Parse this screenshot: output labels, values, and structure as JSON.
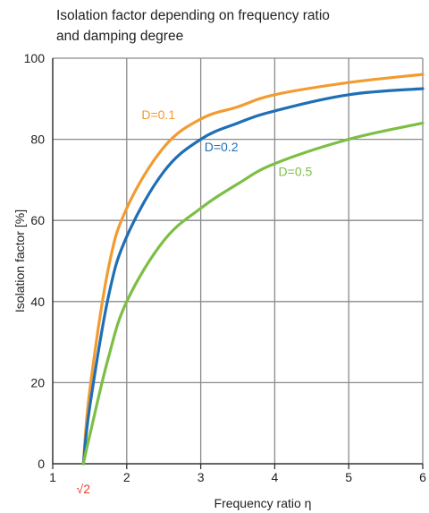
{
  "chart_data": {
    "type": "line",
    "title_lines": [
      "Isolation factor depending on frequency ratio",
      "and damping degree"
    ],
    "xlabel": "Frequency ratio η",
    "ylabel": "Isolation factor [%]",
    "xlim": [
      1,
      6
    ],
    "ylim": [
      0,
      100
    ],
    "x_ticks": [
      "1",
      "2",
      "3",
      "4",
      "5",
      "6"
    ],
    "y_ticks": [
      "0",
      "20",
      "40",
      "60",
      "80",
      "100"
    ],
    "special_tick": {
      "label": "√2",
      "x": 1.414,
      "color": "#e8412c"
    },
    "grid": true,
    "series": [
      {
        "name": "D=0.1",
        "damping": 0.1,
        "color": "#f29b30",
        "points": [
          [
            1.414,
            0
          ],
          [
            1.5,
            18
          ],
          [
            1.75,
            48
          ],
          [
            2,
            63
          ],
          [
            2.5,
            78
          ],
          [
            3,
            85
          ],
          [
            3.5,
            88
          ],
          [
            4,
            91
          ],
          [
            5,
            94
          ],
          [
            6,
            96
          ]
        ]
      },
      {
        "name": "D=0.2",
        "damping": 0.2,
        "color": "#1e6fb5",
        "points": [
          [
            1.414,
            0
          ],
          [
            1.5,
            14
          ],
          [
            1.75,
            41
          ],
          [
            2,
            56
          ],
          [
            2.5,
            72
          ],
          [
            3,
            80
          ],
          [
            3.5,
            84
          ],
          [
            4,
            87
          ],
          [
            5,
            91
          ],
          [
            6,
            92.5
          ]
        ]
      },
      {
        "name": "D=0.5",
        "damping": 0.5,
        "color": "#7dbe45",
        "points": [
          [
            1.414,
            0
          ],
          [
            1.5,
            7
          ],
          [
            1.75,
            26
          ],
          [
            2,
            40
          ],
          [
            2.5,
            55
          ],
          [
            3,
            63
          ],
          [
            3.5,
            69
          ],
          [
            4,
            74
          ],
          [
            5,
            80
          ],
          [
            6,
            84
          ]
        ]
      }
    ],
    "label_anchor_x": [
      2.2,
      3.05,
      4.05
    ],
    "label_anchor_y": [
      85,
      77,
      71
    ]
  }
}
